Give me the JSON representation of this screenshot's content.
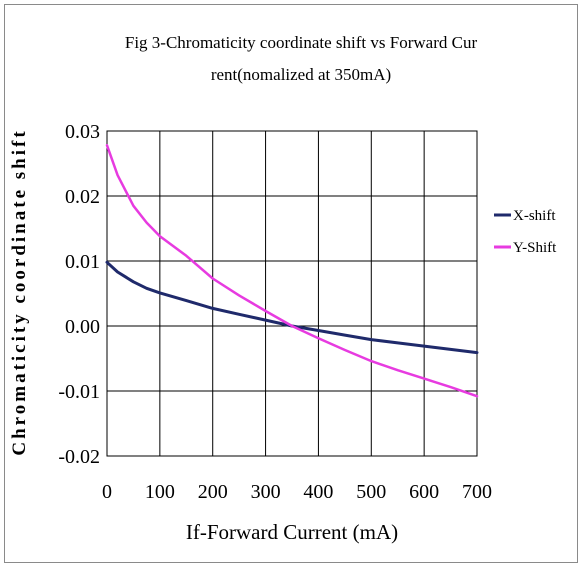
{
  "chart_data": {
    "type": "line",
    "title_lines": [
      "Fig 3-Chromaticity coordinate shift vs Forward Cur",
      "rent(nomalized at 350mA)"
    ],
    "xlabel": "If-Forward Current (mA)",
    "ylabel": "Chromaticity coordinate shift",
    "xlim": [
      0,
      700
    ],
    "ylim": [
      -0.02,
      0.03
    ],
    "x_ticks": [
      "0",
      "100",
      "200",
      "300",
      "400",
      "500",
      "600",
      "700"
    ],
    "y_ticks": [
      "0.03",
      "0.02",
      "0.01",
      "0.00",
      "-0.01",
      "-0.02"
    ],
    "grid": true,
    "legend_position": "right",
    "series": [
      {
        "name": "X-shift",
        "color": "#1f2a6b",
        "x": [
          0,
          20,
          50,
          75,
          100,
          150,
          200,
          250,
          300,
          350,
          400,
          450,
          500,
          550,
          600,
          650,
          700
        ],
        "y": [
          0.0098,
          0.0083,
          0.0068,
          0.0058,
          0.0051,
          0.0039,
          0.0027,
          0.0018,
          0.0009,
          0.0,
          -0.0007,
          -0.0014,
          -0.0021,
          -0.0026,
          -0.0031,
          -0.0036,
          -0.0041
        ]
      },
      {
        "name": "Y-Shift",
        "color": "#e73be0",
        "x": [
          0,
          20,
          50,
          75,
          100,
          150,
          200,
          250,
          300,
          350,
          400,
          450,
          500,
          550,
          600,
          650,
          700
        ],
        "y": [
          0.0278,
          0.0232,
          0.0185,
          0.0159,
          0.0138,
          0.0108,
          0.0073,
          0.0047,
          0.0023,
          0.0,
          -0.0019,
          -0.0037,
          -0.0054,
          -0.0068,
          -0.0081,
          -0.0094,
          -0.0108
        ]
      }
    ]
  }
}
